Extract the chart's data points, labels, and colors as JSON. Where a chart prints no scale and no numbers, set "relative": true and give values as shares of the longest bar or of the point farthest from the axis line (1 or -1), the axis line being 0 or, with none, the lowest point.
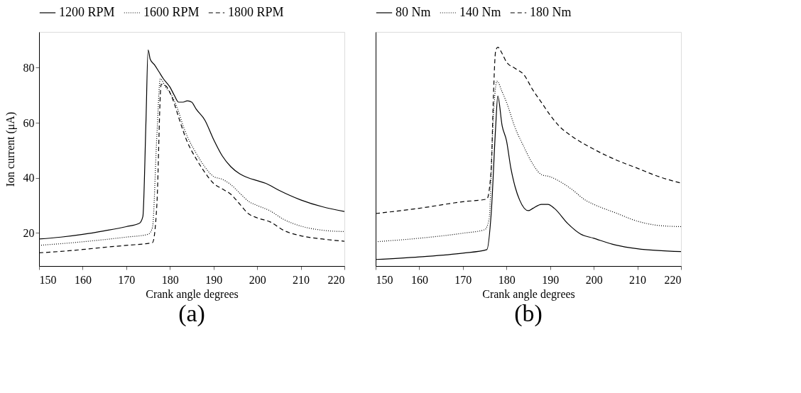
{
  "chart_data": [
    {
      "type": "line",
      "xlabel": "Crank angle degrees",
      "ylabel": "Ion current (μA)",
      "xlim": [
        150,
        220
      ],
      "xticks": [
        150,
        160,
        170,
        180,
        190,
        200,
        210,
        220
      ],
      "ylim": [
        8,
        93
      ],
      "yticks": [
        20,
        40,
        60,
        80
      ],
      "grid": false,
      "legend": "top",
      "annotations": [
        "(a)"
      ],
      "series": [
        {
          "name": "1200 RPM",
          "color": "#000000",
          "line_style": "solid",
          "x": [
            150,
            155,
            160,
            165,
            170,
            173,
            173.8,
            174.5,
            175,
            175.5,
            176.5,
            177.5,
            178.5,
            180,
            181,
            182,
            183,
            184,
            185,
            186,
            188,
            190,
            192,
            194,
            196,
            198,
            200,
            202,
            205,
            210,
            215,
            220
          ],
          "values": [
            17.8,
            18.5,
            19.5,
            20.8,
            22.3,
            23.5,
            26,
            60,
            86.5,
            83,
            81,
            78.5,
            76,
            73,
            70,
            67.5,
            67.5,
            68,
            67.5,
            65,
            61,
            54,
            48,
            44,
            41.5,
            40,
            39,
            38,
            35.5,
            32,
            29.5,
            27.8
          ]
        },
        {
          "name": "1600 RPM",
          "color": "#000000",
          "line_style": "dotted",
          "x": [
            150,
            160,
            170,
            175,
            176,
            177,
            177.8,
            179,
            180,
            181,
            182,
            183,
            184,
            186,
            188,
            190,
            192,
            194,
            196,
            198,
            200,
            203,
            206,
            210,
            215,
            220
          ],
          "values": [
            15.5,
            16.8,
            18.5,
            19.5,
            22,
            55,
            76,
            73,
            71,
            68,
            64,
            59,
            55,
            49,
            44,
            40.5,
            39.5,
            37.5,
            34.5,
            31.5,
            30,
            28,
            25,
            22.5,
            21,
            20.5
          ]
        },
        {
          "name": "1800 RPM",
          "color": "#000000",
          "line_style": "dashed",
          "x": [
            150,
            155,
            160,
            165,
            170,
            176,
            177,
            178,
            179,
            180,
            181,
            182,
            184,
            186,
            188,
            190,
            192,
            194,
            196,
            198,
            200,
            203,
            206,
            210,
            215,
            220
          ],
          "values": [
            12.8,
            13.3,
            14,
            14.8,
            15.5,
            16.5,
            30,
            74,
            73.5,
            71,
            67,
            62,
            53,
            47,
            42,
            38,
            36,
            34,
            30.5,
            27,
            25.5,
            24,
            21,
            19,
            17.8,
            17
          ]
        }
      ]
    },
    {
      "type": "line",
      "xlabel": "Crank angle degrees",
      "relative": true,
      "xlim": [
        150,
        220
      ],
      "xticks": [
        150,
        160,
        170,
        180,
        190,
        200,
        210,
        220
      ],
      "grid": false,
      "legend": "top",
      "annotations": [
        "(b)"
      ],
      "series": [
        {
          "name": "80 Nm",
          "color": "#000000",
          "line_style": "solid",
          "x": [
            150,
            160,
            170,
            175.5,
            176.5,
            177.5,
            178,
            179,
            180,
            181,
            182,
            183,
            185,
            186,
            188,
            189.5,
            191,
            194,
            197,
            200,
            205,
            210,
            220
          ],
          "values": [
            0.03,
            0.042,
            0.059,
            0.075,
            0.243,
            0.631,
            0.777,
            0.641,
            0.573,
            0.447,
            0.36,
            0.302,
            0.253,
            0.263,
            0.282,
            0.282,
            0.263,
            0.195,
            0.146,
            0.127,
            0.096,
            0.079,
            0.066
          ]
        },
        {
          "name": "140 Nm",
          "color": "#000000",
          "line_style": "dotted",
          "x": [
            150,
            160,
            170,
            175,
            176,
            177,
            177.8,
            179,
            180,
            182,
            184,
            186,
            188,
            190,
            192,
            195,
            198,
            200,
            205,
            210,
            215,
            220
          ],
          "values": [
            0.111,
            0.127,
            0.15,
            0.166,
            0.214,
            0.69,
            0.845,
            0.796,
            0.748,
            0.631,
            0.544,
            0.467,
            0.418,
            0.408,
            0.389,
            0.35,
            0.302,
            0.282,
            0.243,
            0.205,
            0.185,
            0.18
          ]
        },
        {
          "name": "180 Nm",
          "color": "#000000",
          "line_style": "dashed",
          "x": [
            150,
            160,
            170,
            175.5,
            176.5,
            177,
            177.5,
            178,
            179,
            180,
            182,
            184,
            186,
            188,
            190,
            192,
            195,
            200,
            205,
            210,
            215,
            220
          ],
          "values": [
            0.24,
            0.264,
            0.294,
            0.306,
            0.447,
            0.777,
            0.981,
            1,
            0.971,
            0.932,
            0.903,
            0.874,
            0.806,
            0.748,
            0.69,
            0.641,
            0.593,
            0.534,
            0.486,
            0.447,
            0.408,
            0.379
          ]
        }
      ]
    }
  ]
}
